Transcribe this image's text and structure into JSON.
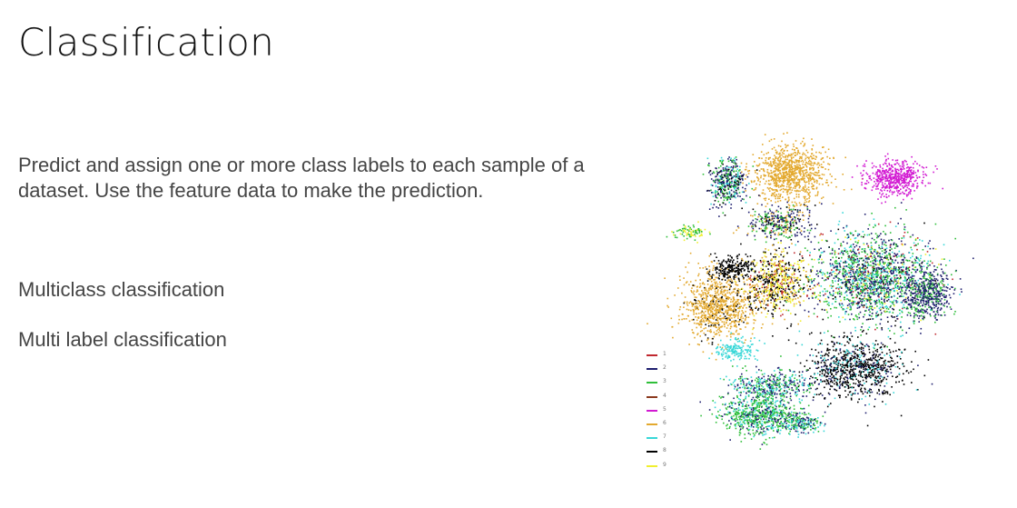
{
  "slide": {
    "title": "Classification",
    "description": "Predict and assign one or more class labels to each sample of a dataset. Use the feature data to make the prediction.",
    "items": [
      {
        "label": "Multiclass classification"
      },
      {
        "label": "Multi label classification"
      }
    ]
  },
  "figure": {
    "type": "tsne-scatter",
    "legend": [
      {
        "label": "1",
        "color": "#c0282f"
      },
      {
        "label": "2",
        "color": "#1e1e6e"
      },
      {
        "label": "3",
        "color": "#2fbf3a"
      },
      {
        "label": "4",
        "color": "#8b3a1e"
      },
      {
        "label": "5",
        "color": "#d21ad2"
      },
      {
        "label": "6",
        "color": "#e3a92f"
      },
      {
        "label": "7",
        "color": "#38d7d7"
      },
      {
        "label": "8",
        "color": "#000000"
      },
      {
        "label": "9",
        "color": "#f0ef2f"
      }
    ]
  }
}
